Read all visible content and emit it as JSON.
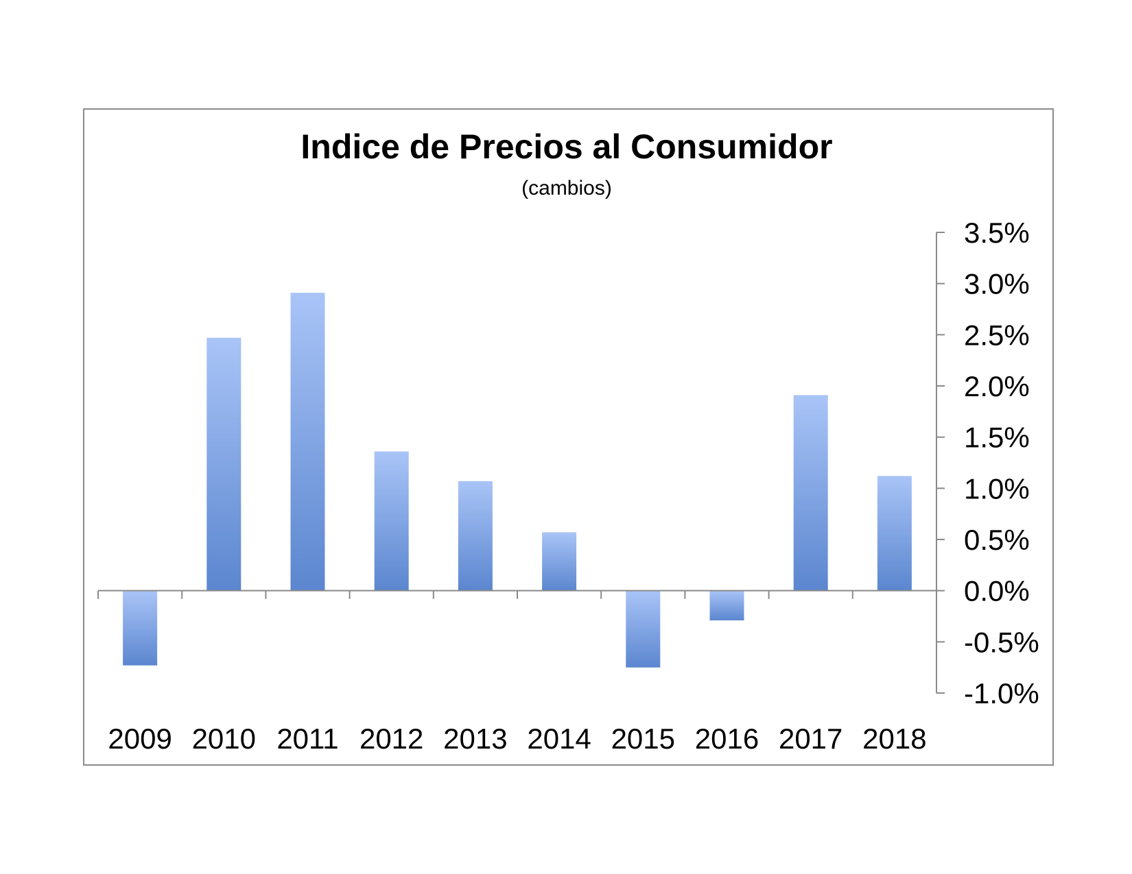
{
  "colors": {
    "border": "#8a8a8a",
    "axis": "#8a8a8a",
    "bar_light": "#a9c4f7",
    "bar_dark": "#5b86cf"
  },
  "chart_data": {
    "type": "bar",
    "title": "Indice de Precios al Consumidor",
    "subtitle": "(cambios)",
    "xlabel": "",
    "ylabel": "",
    "categories": [
      "2009",
      "2010",
      "2011",
      "2012",
      "2013",
      "2014",
      "2015",
      "2016",
      "2017",
      "2018"
    ],
    "values": [
      -0.73,
      2.47,
      2.91,
      1.36,
      1.07,
      0.57,
      -0.75,
      -0.29,
      1.91,
      1.12
    ],
    "ylim": [
      -1.0,
      3.5
    ],
    "yticks": [
      "3.5%",
      "3.0%",
      "2.5%",
      "2.0%",
      "1.5%",
      "1.0%",
      "0.5%",
      "0.0%",
      "-0.5%",
      "-1.0%"
    ],
    "ytick_values": [
      3.5,
      3.0,
      2.5,
      2.0,
      1.5,
      1.0,
      0.5,
      0.0,
      -0.5,
      -1.0
    ],
    "y_axis_position": "right",
    "grid": false,
    "legend": "none"
  }
}
